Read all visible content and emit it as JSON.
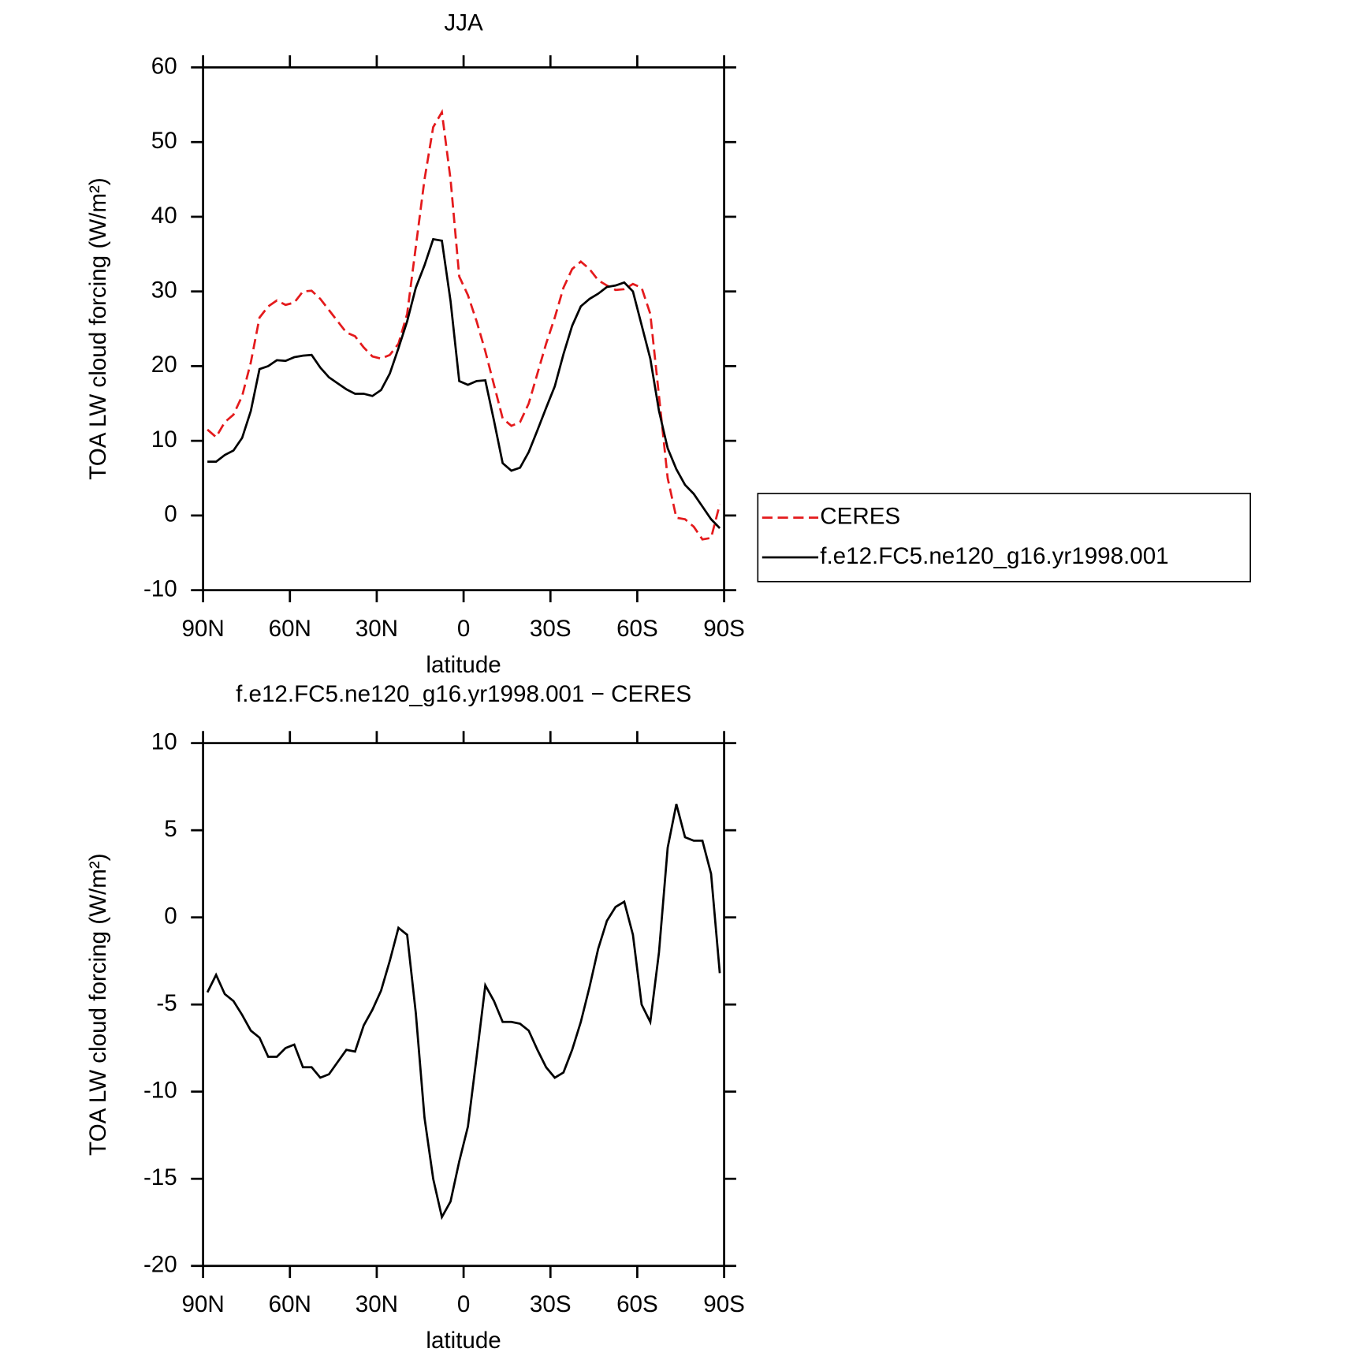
{
  "chart_data": [
    {
      "type": "line",
      "title": "JJA",
      "ylabel": "TOA LW cloud forcing (W/m²)",
      "xlabel": "latitude",
      "x": [
        88.5,
        85.5,
        82.5,
        79.5,
        76.5,
        73.5,
        70.5,
        67.5,
        64.5,
        61.5,
        58.5,
        55.5,
        52.5,
        49.5,
        46.5,
        43.5,
        40.5,
        37.5,
        34.5,
        31.5,
        28.5,
        25.5,
        22.5,
        19.5,
        16.5,
        13.5,
        10.5,
        7.5,
        4.5,
        1.5,
        -1.5,
        -4.5,
        -7.5,
        -10.5,
        -13.5,
        -16.5,
        -19.5,
        -22.5,
        -25.5,
        -28.5,
        -31.5,
        -34.5,
        -37.5,
        -40.5,
        -43.5,
        -46.5,
        -49.5,
        -52.5,
        -55.5,
        -58.5,
        -61.5,
        -64.5,
        -67.5,
        -70.5,
        -73.5,
        -76.5,
        -79.5,
        -82.5,
        -85.5,
        -88.5
      ],
      "series": [
        {
          "name": "CERES",
          "color": "#e41a1c",
          "dash": "dashed",
          "values": [
            11.5,
            10.5,
            12.5,
            13.5,
            16,
            20.5,
            26.5,
            28,
            28.8,
            28.2,
            28.5,
            30,
            30.1,
            29,
            27.5,
            26,
            24.5,
            24,
            22.5,
            21.3,
            21,
            21.5,
            23,
            27,
            36,
            45,
            52,
            54,
            45,
            32,
            29.5,
            26,
            22,
            17.5,
            13,
            12,
            12.5,
            15,
            19,
            23,
            26.5,
            30.5,
            33,
            34,
            33,
            31.5,
            30.8,
            30.2,
            30.3,
            31,
            30.5,
            27,
            16,
            5,
            -0.3,
            -0.5,
            -1.5,
            -3.2,
            -3,
            1.5
          ]
        },
        {
          "name": "f.e12.FC5.ne120_g16.yr1998.001",
          "color": "#000000",
          "dash": "solid",
          "values": [
            7.2,
            7.2,
            8.1,
            8.7,
            10.4,
            14.0,
            19.6,
            20.0,
            20.8,
            20.7,
            21.2,
            21.4,
            21.5,
            19.8,
            18.5,
            17.7,
            16.9,
            16.3,
            16.3,
            16.0,
            16.8,
            19.0,
            22.4,
            26.0,
            30.5,
            33.5,
            37.0,
            36.8,
            28.7,
            18.0,
            17.5,
            18.0,
            18.1,
            12.7,
            7.0,
            6.0,
            6.4,
            8.5,
            11.4,
            14.4,
            17.3,
            21.6,
            25.4,
            28.0,
            29.0,
            29.7,
            30.6,
            30.8,
            31.2,
            30.0,
            25.5,
            21.0,
            14.0,
            9.0,
            6.2,
            4.1,
            2.9,
            1.2,
            -0.5,
            -1.7
          ]
        }
      ],
      "xlim": [
        90,
        -90
      ],
      "xticks": [
        {
          "value": 90,
          "label": "90N"
        },
        {
          "value": 60,
          "label": "60N"
        },
        {
          "value": 30,
          "label": "30N"
        },
        0,
        {
          "value": -30,
          "label": "30S"
        },
        {
          "value": -60,
          "label": "60S"
        },
        {
          "value": -90,
          "label": "90S"
        }
      ],
      "ylim": [
        -10,
        60
      ],
      "yticks": [
        -10,
        0,
        10,
        20,
        30,
        40,
        50,
        60
      ],
      "legend": "right"
    },
    {
      "type": "line",
      "title": "f.e12.FC5.ne120_g16.yr1998.001 − CERES",
      "ylabel": "TOA LW cloud forcing (W/m²)",
      "xlabel": "latitude",
      "x": [
        88.5,
        85.5,
        82.5,
        79.5,
        76.5,
        73.5,
        70.5,
        67.5,
        64.5,
        61.5,
        58.5,
        55.5,
        52.5,
        49.5,
        46.5,
        43.5,
        40.5,
        37.5,
        34.5,
        31.5,
        28.5,
        25.5,
        22.5,
        19.5,
        16.5,
        13.5,
        10.5,
        7.5,
        4.5,
        1.5,
        -1.5,
        -4.5,
        -7.5,
        -10.5,
        -13.5,
        -16.5,
        -19.5,
        -22.5,
        -25.5,
        -28.5,
        -31.5,
        -34.5,
        -37.5,
        -40.5,
        -43.5,
        -46.5,
        -49.5,
        -52.5,
        -55.5,
        -58.5,
        -61.5,
        -64.5,
        -67.5,
        -70.5,
        -73.5,
        -76.5,
        -79.5,
        -82.5,
        -85.5,
        -88.5
      ],
      "values": [
        -4.3,
        -3.3,
        -4.4,
        -4.8,
        -5.6,
        -6.5,
        -6.9,
        -8.0,
        -8.0,
        -7.5,
        -7.3,
        -8.6,
        -8.6,
        -9.2,
        -9.0,
        -8.3,
        -7.6,
        -7.7,
        -6.2,
        -5.3,
        -4.2,
        -2.5,
        -0.6,
        -1.0,
        -5.5,
        -11.5,
        -15,
        -17.2,
        -16.3,
        -14,
        -12,
        -8,
        -3.9,
        -4.8,
        -6,
        -6,
        -6.1,
        -6.5,
        -7.6,
        -8.6,
        -9.2,
        -8.9,
        -7.6,
        -6,
        -4,
        -1.8,
        -0.2,
        0.6,
        0.9,
        -1,
        -5,
        -6,
        -2,
        4,
        6.5,
        4.6,
        4.4,
        4.4,
        2.5,
        -3.2
      ],
      "color": "#000000",
      "xlim": [
        90,
        -90
      ],
      "xticks": [
        {
          "value": 90,
          "label": "90N"
        },
        {
          "value": 60,
          "label": "60N"
        },
        {
          "value": 30,
          "label": "30N"
        },
        0,
        {
          "value": -30,
          "label": "30S"
        },
        {
          "value": -60,
          "label": "60S"
        },
        {
          "value": -90,
          "label": "90S"
        }
      ],
      "ylim": [
        -20,
        10
      ],
      "yticks": [
        -20,
        -15,
        -10,
        -5,
        0,
        5,
        10
      ]
    }
  ]
}
